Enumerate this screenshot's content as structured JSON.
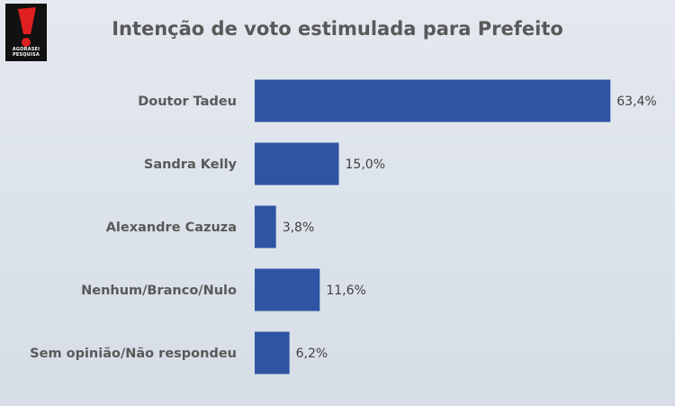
{
  "logo": {
    "text": "AGORASEI PESQUISA"
  },
  "chart_data": {
    "type": "bar",
    "orientation": "horizontal",
    "title": "Intenção de voto estimulada para Prefeito",
    "categories": [
      "Doutor Tadeu",
      "Sandra Kelly",
      "Alexandre Cazuza",
      "Nenhum/Branco/Nulo",
      "Sem opinião/Não respondeu"
    ],
    "values": [
      63.4,
      15.0,
      3.8,
      11.6,
      6.2
    ],
    "value_labels": [
      "63,4%",
      "15,0%",
      "3,8%",
      "11,6%",
      "6,2%"
    ],
    "xlim": [
      0,
      64
    ],
    "grid": false,
    "legend": "none",
    "colors": {
      "bar": "#2f54a3",
      "background": "#dde3ea",
      "title": "#595959"
    }
  }
}
